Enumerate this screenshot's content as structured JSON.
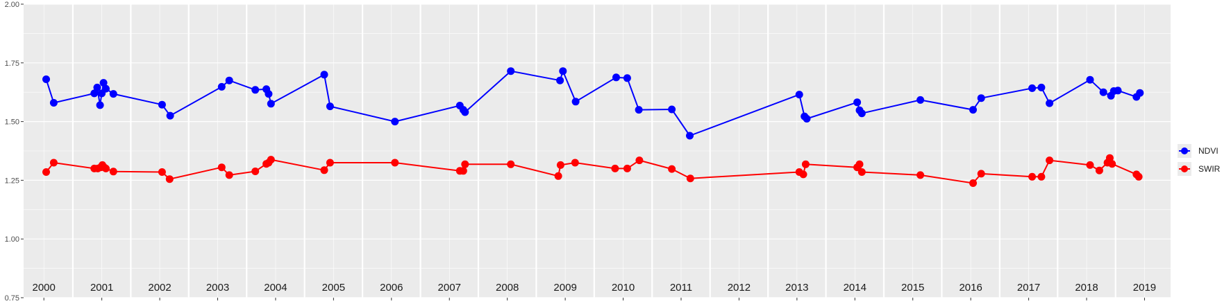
{
  "chart_data": {
    "type": "line",
    "title": "",
    "xlabel": "",
    "ylabel": "",
    "xlim": [
      1999.65,
      2019.45
    ],
    "ylim": [
      0.75,
      2.0
    ],
    "y_ticks": [
      "0.75",
      "1.00",
      "1.25",
      "1.50",
      "1.75",
      "2.00"
    ],
    "y_tick_values": [
      0.75,
      1.0,
      1.25,
      1.5,
      1.75,
      2.0
    ],
    "year_labels": [
      "2000",
      "2001",
      "2002",
      "2003",
      "2004",
      "2005",
      "2006",
      "2007",
      "2008",
      "2009",
      "2010",
      "2011",
      "2012",
      "2013",
      "2014",
      "2015",
      "2016",
      "2017",
      "2018",
      "2019"
    ],
    "grid": true,
    "legend_position": "right",
    "series": [
      {
        "name": "NDVI",
        "color": "#0000ff",
        "x": [
          2000.04,
          2000.17,
          2000.87,
          2000.92,
          2000.97,
          2001.0,
          2001.03,
          2001.07,
          2001.2,
          2002.04,
          2002.18,
          2003.07,
          2003.2,
          2003.65,
          2003.84,
          2003.88,
          2003.92,
          2004.84,
          2004.94,
          2006.06,
          2007.18,
          2007.24,
          2007.27,
          2008.06,
          2008.91,
          2008.96,
          2009.18,
          2009.88,
          2010.07,
          2010.27,
          2010.84,
          2011.15,
          2013.04,
          2013.13,
          2013.17,
          2014.04,
          2014.08,
          2014.12,
          2015.13,
          2016.04,
          2016.18,
          2017.06,
          2017.22,
          2017.36,
          2018.06,
          2018.29,
          2018.42,
          2018.47,
          2018.54,
          2018.86,
          2018.92
        ],
        "y": [
          1.68,
          1.58,
          1.62,
          1.645,
          1.57,
          1.62,
          1.665,
          1.64,
          1.618,
          1.572,
          1.525,
          1.648,
          1.675,
          1.635,
          1.638,
          1.618,
          1.576,
          1.7,
          1.565,
          1.5,
          1.568,
          1.55,
          1.54,
          1.715,
          1.675,
          1.715,
          1.585,
          1.688,
          1.685,
          1.55,
          1.552,
          1.44,
          1.615,
          1.522,
          1.512,
          1.582,
          1.548,
          1.535,
          1.592,
          1.55,
          1.6,
          1.642,
          1.645,
          1.578,
          1.678,
          1.625,
          1.61,
          1.63,
          1.632,
          1.605,
          1.622
        ]
      },
      {
        "name": "SWIR",
        "color": "#ff0000",
        "x": [
          2000.04,
          2000.17,
          2000.87,
          2000.93,
          2000.98,
          2001.01,
          2001.04,
          2001.07,
          2001.2,
          2002.04,
          2002.17,
          2003.07,
          2003.2,
          2003.65,
          2003.84,
          2003.88,
          2003.92,
          2004.84,
          2004.94,
          2006.06,
          2007.18,
          2007.24,
          2007.27,
          2008.06,
          2008.88,
          2008.92,
          2009.17,
          2009.86,
          2010.07,
          2010.28,
          2010.84,
          2011.16,
          2013.04,
          2013.11,
          2013.15,
          2014.04,
          2014.08,
          2014.12,
          2015.13,
          2016.04,
          2016.18,
          2017.06,
          2017.22,
          2017.36,
          2018.06,
          2018.22,
          2018.36,
          2018.4,
          2018.44,
          2018.86,
          2018.9
        ],
        "y": [
          1.285,
          1.325,
          1.3,
          1.3,
          1.305,
          1.315,
          1.305,
          1.3,
          1.287,
          1.285,
          1.255,
          1.305,
          1.272,
          1.288,
          1.32,
          1.325,
          1.338,
          1.293,
          1.325,
          1.325,
          1.29,
          1.29,
          1.318,
          1.318,
          1.268,
          1.315,
          1.325,
          1.3,
          1.3,
          1.335,
          1.298,
          1.258,
          1.285,
          1.275,
          1.318,
          1.305,
          1.318,
          1.285,
          1.272,
          1.238,
          1.278,
          1.265,
          1.265,
          1.335,
          1.315,
          1.292,
          1.325,
          1.345,
          1.32,
          1.275,
          1.265
        ]
      }
    ]
  }
}
